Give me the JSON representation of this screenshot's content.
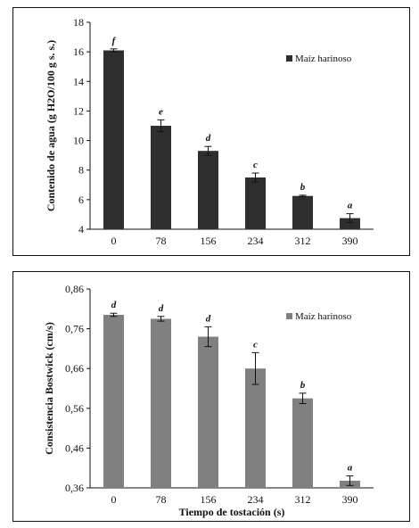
{
  "chart_data": [
    {
      "type": "bar",
      "categories": [
        "0",
        "78",
        "156",
        "234",
        "312",
        "390"
      ],
      "series": [
        {
          "name": "Maíz harinoso",
          "values": [
            16.1,
            11.0,
            9.3,
            7.5,
            6.25,
            4.75
          ],
          "errors": [
            0.1,
            0.4,
            0.3,
            0.3,
            0.05,
            0.3
          ],
          "color": "#2e2e2e"
        }
      ],
      "significance_letters": [
        "f",
        "e",
        "d",
        "c",
        "b",
        "a"
      ],
      "ylabel": "Contenido de agua (g H2O/100 g s. s.)",
      "xlabel": "",
      "ylim": [
        4,
        18
      ],
      "yticks": [
        4,
        6,
        8,
        10,
        12,
        14,
        16,
        18
      ],
      "ytick_labels": [
        "4",
        "6",
        "8",
        "10",
        "12",
        "14",
        "16",
        "18"
      ],
      "legend_position": "top-right",
      "grid": false
    },
    {
      "type": "bar",
      "categories": [
        "0",
        "78",
        "156",
        "234",
        "312",
        "390"
      ],
      "series": [
        {
          "name": "Maíz harinoso",
          "values": [
            0.795,
            0.785,
            0.74,
            0.66,
            0.585,
            0.378
          ],
          "errors": [
            0.004,
            0.006,
            0.025,
            0.04,
            0.013,
            0.012
          ],
          "color": "#808080"
        }
      ],
      "significance_letters": [
        "d",
        "d",
        "d",
        "c",
        "b",
        "a"
      ],
      "ylabel": "Consistencia Bostwick (cm/s)",
      "xlabel": "Tiempo de tostación (s)",
      "ylim": [
        0.36,
        0.86
      ],
      "yticks": [
        0.36,
        0.46,
        0.56,
        0.66,
        0.76,
        0.86
      ],
      "ytick_labels": [
        "0,36",
        "0,46",
        "0,56",
        "0,66",
        "0,76",
        "0,86"
      ],
      "legend_position": "top-right",
      "grid": false
    }
  ]
}
